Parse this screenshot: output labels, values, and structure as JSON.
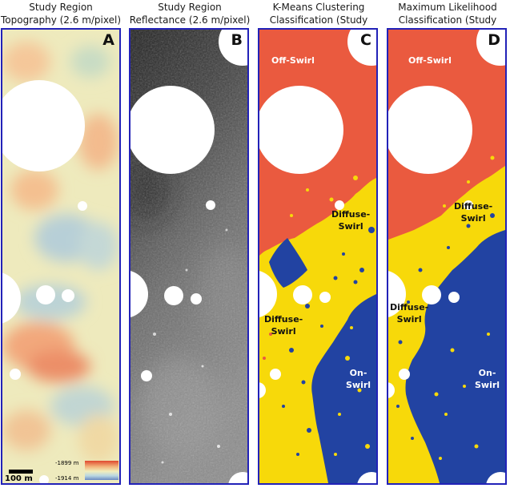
{
  "panels": [
    {
      "id": "A",
      "title_line1": "Study Region",
      "title_line2": "Topography (2.6 m/pixel)",
      "letter": "A"
    },
    {
      "id": "B",
      "title_line1": "Study Region",
      "title_line2": "Reflectance (2.6 m/pixel)",
      "letter": "B"
    },
    {
      "id": "C",
      "title_line1": "K-Means Clustering",
      "title_line2": "Classification (Study Region)",
      "letter": "C",
      "labels": {
        "off_swirl": "Off-Swirl",
        "diffuse_1_a": "Diffuse-",
        "diffuse_1_b": "Swirl",
        "diffuse_2_a": "Diffuse-",
        "diffuse_2_b": "Swirl",
        "on_swirl_a": "On-",
        "on_swirl_b": "Swirl"
      }
    },
    {
      "id": "D",
      "title_line1": "Maximum Likelihood",
      "title_line2": "Classification (Study Region)",
      "letter": "D",
      "labels": {
        "off_swirl": "Off-Swirl",
        "diffuse_1_a": "Diffuse-",
        "diffuse_1_b": "Swirl",
        "diffuse_2_a": "Diffuse-",
        "diffuse_2_b": "Swirl",
        "on_swirl_a": "On-",
        "on_swirl_b": "Swirl"
      }
    }
  ],
  "scale_bar": {
    "label": "100 m"
  },
  "elevation_legend": {
    "max": "-1899 m",
    "min": "-1914 m"
  },
  "colors": {
    "frame": "#2222b8",
    "off_swirl": "#ea5a3f",
    "diffuse_swirl": "#f7d90a",
    "on_swirl": "#2243a2"
  }
}
